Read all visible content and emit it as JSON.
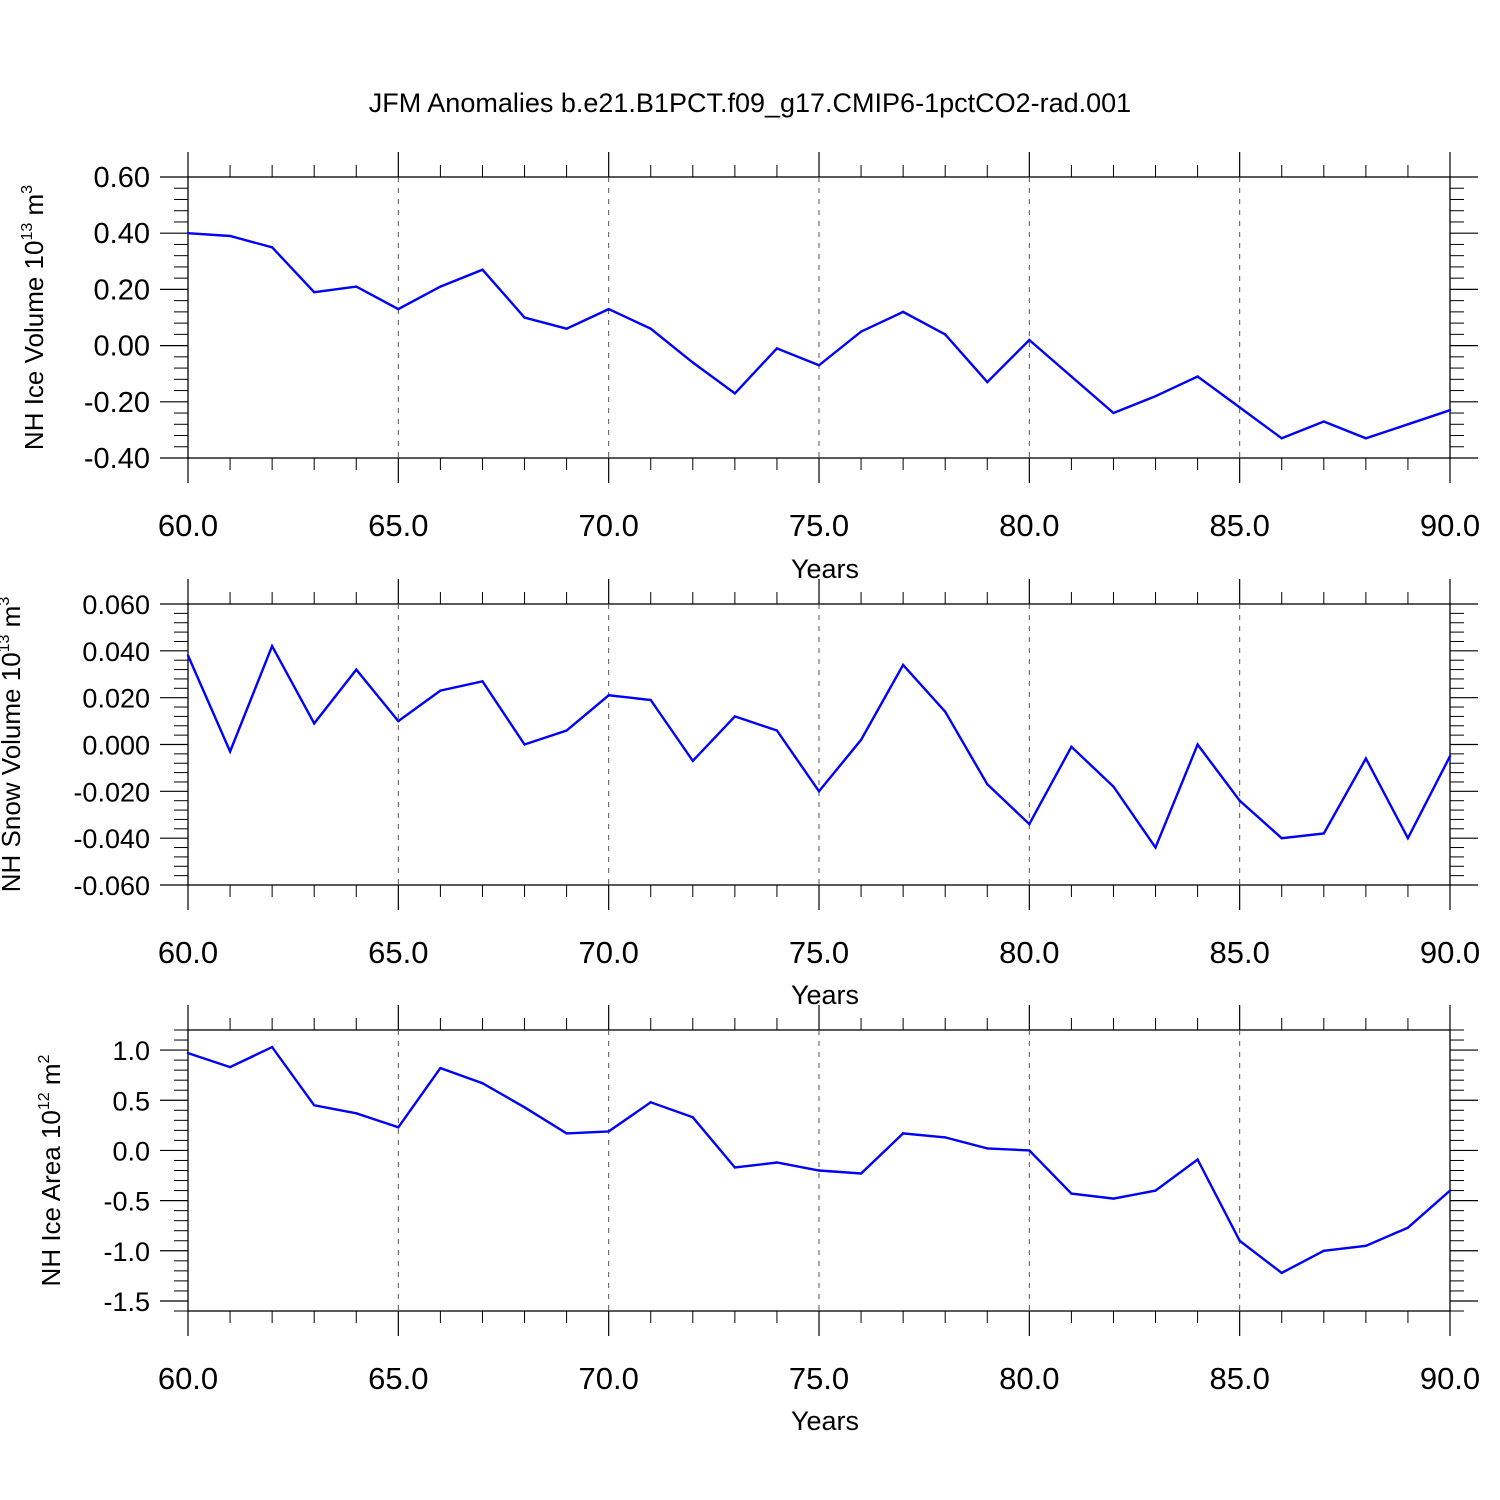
{
  "title": "JFM Anomalies b.e21.B1PCT.f09_g17.CMIP6-1pctCO2-rad.001",
  "colors": {
    "series": "#0000ff",
    "axis": "#000000",
    "grid": "#555555"
  },
  "chart_data": [
    {
      "type": "line",
      "ylabel": "NH Ice Volume 10",
      "ylabel_exp": "13",
      "ylabel_unit": " m",
      "ylabel_unit_exp": "3",
      "xlabel": "Years",
      "xlim": [
        60,
        90
      ],
      "ylim": [
        -0.4,
        0.6
      ],
      "xticks": [
        "60.0",
        "65.0",
        "70.0",
        "75.0",
        "80.0",
        "85.0",
        "90.0"
      ],
      "yticks": [
        "0.60",
        "0.40",
        "0.20",
        "0.00",
        "-0.20",
        "-0.40"
      ],
      "grid": "vertical dashed at major x ticks",
      "x": [
        60,
        61,
        62,
        63,
        64,
        65,
        66,
        67,
        68,
        69,
        70,
        71,
        72,
        73,
        74,
        75,
        76,
        77,
        78,
        79,
        80,
        81,
        82,
        83,
        84,
        85,
        86,
        87,
        88,
        89,
        90
      ],
      "values": [
        0.4,
        0.39,
        0.35,
        0.19,
        0.21,
        0.13,
        0.21,
        0.27,
        0.1,
        0.06,
        0.13,
        0.06,
        -0.06,
        -0.17,
        -0.01,
        -0.07,
        0.05,
        0.12,
        0.04,
        -0.13,
        0.02,
        -0.11,
        -0.24,
        -0.18,
        -0.11,
        -0.22,
        -0.33,
        -0.27,
        -0.33,
        -0.28,
        -0.23
      ]
    },
    {
      "type": "line",
      "ylabel": "NH Snow Volume 10",
      "ylabel_exp": "13",
      "ylabel_unit": " m",
      "ylabel_unit_exp": "3",
      "xlabel": "Years",
      "xlim": [
        60,
        90
      ],
      "ylim": [
        -0.06,
        0.06
      ],
      "xticks": [
        "60.0",
        "65.0",
        "70.0",
        "75.0",
        "80.0",
        "85.0",
        "90.0"
      ],
      "yticks": [
        "0.060",
        "0.040",
        "0.020",
        "0.000",
        "-0.020",
        "-0.040",
        "-0.060"
      ],
      "grid": "vertical dashed at major x ticks",
      "x": [
        60,
        61,
        62,
        63,
        64,
        65,
        66,
        67,
        68,
        69,
        70,
        71,
        72,
        73,
        74,
        75,
        76,
        77,
        78,
        79,
        80,
        81,
        82,
        83,
        84,
        85,
        86,
        87,
        88,
        89,
        90
      ],
      "values": [
        0.038,
        -0.003,
        0.042,
        0.009,
        0.032,
        0.01,
        0.023,
        0.027,
        0.0,
        0.006,
        0.021,
        0.019,
        -0.007,
        0.012,
        0.006,
        -0.02,
        0.002,
        0.034,
        0.014,
        -0.017,
        -0.034,
        -0.001,
        -0.018,
        -0.044,
        0.0,
        -0.024,
        -0.04,
        -0.038,
        -0.006,
        -0.04,
        -0.005
      ]
    },
    {
      "type": "line",
      "ylabel": "NH Ice Area 10",
      "ylabel_exp": "12",
      "ylabel_unit": " m",
      "ylabel_unit_exp": "2",
      "xlabel": "Years",
      "xlim": [
        60,
        90
      ],
      "ylim": [
        -1.6,
        1.2
      ],
      "xticks": [
        "60.0",
        "65.0",
        "70.0",
        "75.0",
        "80.0",
        "85.0",
        "90.0"
      ],
      "yticks": [
        "1.0",
        "0.5",
        "0.0",
        "-0.5",
        "-1.0",
        "-1.5"
      ],
      "ytick_values": [
        1.0,
        0.5,
        0.0,
        -0.5,
        -1.0,
        -1.5
      ],
      "grid": "vertical dashed at major x ticks",
      "x": [
        60,
        61,
        62,
        63,
        64,
        65,
        66,
        67,
        68,
        69,
        70,
        71,
        72,
        73,
        74,
        75,
        76,
        77,
        78,
        79,
        80,
        81,
        82,
        83,
        84,
        85,
        86,
        87,
        88,
        89,
        90
      ],
      "values": [
        0.97,
        0.83,
        1.03,
        0.45,
        0.37,
        0.23,
        0.82,
        0.67,
        0.43,
        0.17,
        0.19,
        0.48,
        0.33,
        -0.17,
        -0.12,
        -0.2,
        -0.23,
        0.17,
        0.13,
        0.02,
        0.0,
        -0.43,
        -0.48,
        -0.4,
        -0.09,
        -0.9,
        -1.22,
        -1.0,
        -0.95,
        -0.77,
        -0.4
      ]
    }
  ]
}
